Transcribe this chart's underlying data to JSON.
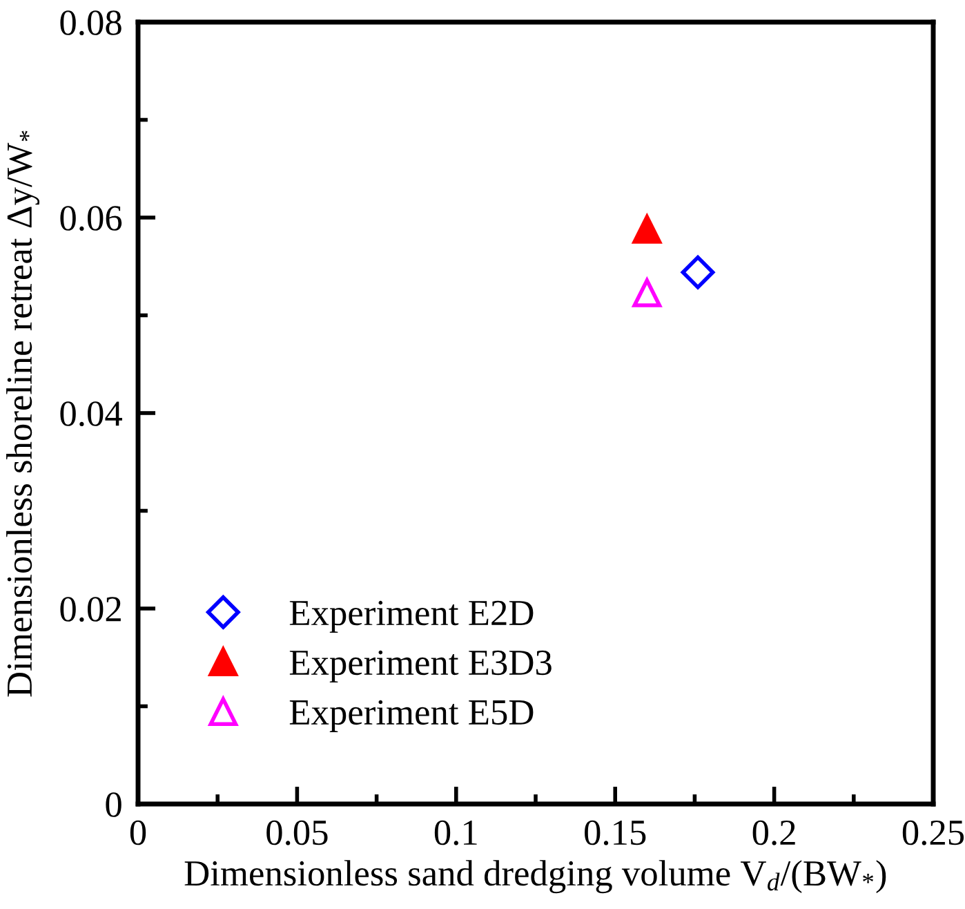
{
  "chart_data": {
    "type": "scatter",
    "xlabel": "Dimensionless sand dredging volume V$_{d}$/(BW$_{*}$)",
    "ylabel": "Dimensionless shoreline retreat Δy/W$_{*}$",
    "x": [
      0.16,
      0.176
    ],
    "series": [
      {
        "name": "Experiment E2D",
        "color": "#0000ff",
        "marker": "diamond",
        "values": [
          null,
          0.0544
        ]
      },
      {
        "name": "Experiment E3D3",
        "color": "#ff0000",
        "marker": "triangle",
        "values": [
          0.0588,
          null
        ]
      },
      {
        "name": "Experiment E5D",
        "color": "#ff00ff",
        "marker": "triangle",
        "values": [
          0.0523,
          null
        ]
      }
    ],
    "xlim": [
      0,
      0.25
    ],
    "xticks": [
      0,
      {
        "value": 0.025,
        "label": null
      },
      0.05,
      {
        "value": 0.075,
        "label": null
      },
      0.1,
      {
        "value": 0.125,
        "label": null
      },
      0.15,
      {
        "value": 0.175,
        "label": null
      },
      0.2,
      {
        "value": 0.225,
        "label": null
      },
      0.25
    ],
    "ylim": [
      0,
      0.08
    ],
    "yticks": [
      0,
      {
        "value": 0.01,
        "label": null
      },
      0.02,
      {
        "value": 0.03,
        "label": null
      },
      0.04,
      {
        "value": 0.05,
        "label": null
      },
      0.06,
      {
        "value": 0.07,
        "label": null
      },
      0.08
    ],
    "grid": false,
    "legend": "bottom left"
  }
}
